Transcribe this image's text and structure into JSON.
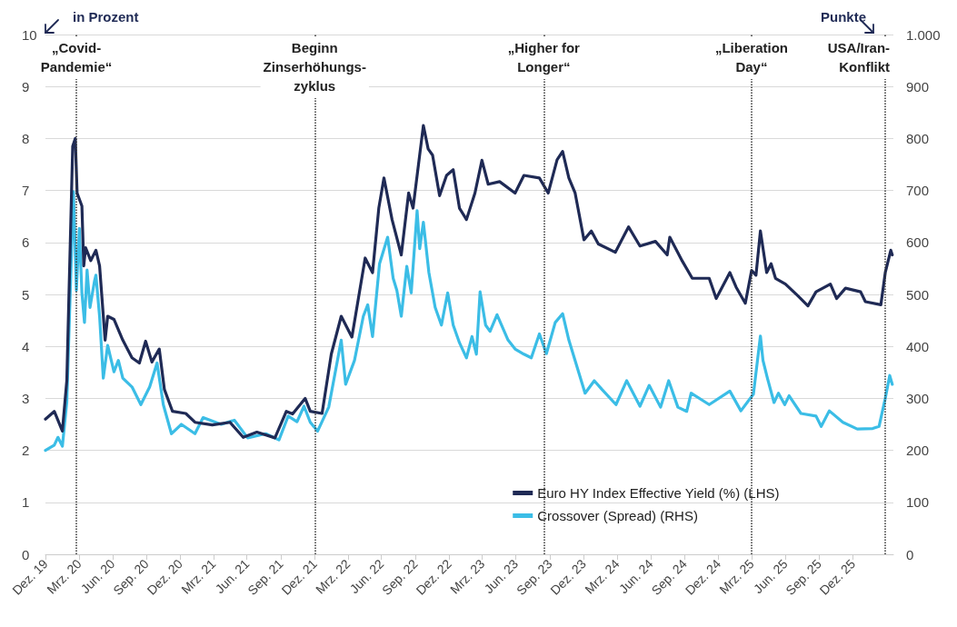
{
  "chart_data": {
    "type": "line",
    "ylabel": "in Prozent",
    "y2label": "Punkte",
    "xlim": [
      "2019-12-31",
      "2026-04-20"
    ],
    "xticks": [
      {
        "value": "2019-12-31",
        "label": "Dez. 19"
      },
      {
        "value": "2020-03-31",
        "label": "Mrz. 20"
      },
      {
        "value": "2020-06-30",
        "label": "Jun. 20"
      },
      {
        "value": "2020-09-30",
        "label": "Sep. 20"
      },
      {
        "value": "2020-12-31",
        "label": "Dez. 20"
      },
      {
        "value": "2021-03-31",
        "label": "Mrz. 21"
      },
      {
        "value": "2021-06-30",
        "label": "Jun. 21"
      },
      {
        "value": "2021-09-30",
        "label": "Sep. 21"
      },
      {
        "value": "2021-12-31",
        "label": "Dez. 21"
      },
      {
        "value": "2022-03-31",
        "label": "Mrz. 22"
      },
      {
        "value": "2022-06-30",
        "label": "Jun. 22"
      },
      {
        "value": "2022-09-30",
        "label": "Sep. 22"
      },
      {
        "value": "2022-12-31",
        "label": "Dez. 22"
      },
      {
        "value": "2023-03-31",
        "label": "Mrz. 23"
      },
      {
        "value": "2023-06-30",
        "label": "Jun. 23"
      },
      {
        "value": "2023-09-30",
        "label": "Sep. 23"
      },
      {
        "value": "2023-12-31",
        "label": "Dez. 23"
      },
      {
        "value": "2024-03-31",
        "label": "Mrz. 24"
      },
      {
        "value": "2024-06-30",
        "label": "Jun. 24"
      },
      {
        "value": "2024-09-30",
        "label": "Sep. 24"
      },
      {
        "value": "2024-12-31",
        "label": "Dez. 24"
      },
      {
        "value": "2025-03-31",
        "label": "Mrz. 25"
      },
      {
        "value": "2025-06-30",
        "label": "Jun. 25"
      },
      {
        "value": "2025-09-30",
        "label": "Sep. 25"
      },
      {
        "value": "2025-12-31",
        "label": "Dez. 25"
      }
    ],
    "ylim": [
      0,
      10
    ],
    "yticks": [
      0,
      1,
      2,
      3,
      4,
      5,
      6,
      7,
      8,
      9,
      10
    ],
    "y2lim": [
      0,
      1000
    ],
    "y2ticks": [
      0,
      100,
      200,
      300,
      400,
      500,
      600,
      700,
      800,
      900,
      {
        "value": 1000,
        "label": "1.000"
      }
    ],
    "grid": "y",
    "legend": "bottom right",
    "marker": "none",
    "line_style": "solid",
    "ref_lines": [
      {
        "axis": "x",
        "value": "2020-03-24",
        "label": "„Covid-\nPandemie“"
      },
      {
        "axis": "x",
        "value": "2021-12-31",
        "label": "Beginn\nZinserhöhungs-\nzyklus"
      },
      {
        "axis": "x",
        "value": "2023-09-14",
        "label": "„Higher for\nLonger“"
      },
      {
        "axis": "x",
        "value": "2025-03-31",
        "label": "„Liberation\nDay“"
      },
      {
        "axis": "x",
        "value": "2026-03-29",
        "label": "USA/Iran-\nKonflikt"
      }
    ],
    "series": [
      {
        "name": "Euro HY Index Effective Yield (%) (LHS)",
        "color": "#1f2a55",
        "x": [
          "2019-12-31",
          "2020-01-24",
          "2020-02-15",
          "2020-02-27",
          "2020-03-14",
          "2020-03-21",
          "2020-03-26",
          "2020-04-08",
          "2020-04-13",
          "2020-04-18",
          "2020-05-02",
          "2020-05-16",
          "2020-05-26",
          "2020-06-10",
          "2020-06-17",
          "2020-07-04",
          "2020-07-28",
          "2020-08-22",
          "2020-09-11",
          "2020-09-28",
          "2020-10-15",
          "2020-11-04",
          "2020-11-18",
          "2020-12-10",
          "2021-01-15",
          "2021-02-09",
          "2021-03-28",
          "2021-05-15",
          "2021-06-20",
          "2021-07-27",
          "2021-09-14",
          "2021-10-15",
          "2021-11-01",
          "2021-12-05",
          "2021-12-19",
          "2022-01-20",
          "2022-02-14",
          "2022-03-13",
          "2022-04-11",
          "2022-05-17",
          "2022-06-06",
          "2022-06-23",
          "2022-07-07",
          "2022-07-29",
          "2022-08-23",
          "2022-09-12",
          "2022-09-24",
          "2022-10-22",
          "2022-11-04",
          "2022-11-16",
          "2022-12-05",
          "2022-12-24",
          "2023-01-11",
          "2023-01-28",
          "2023-02-16",
          "2023-03-11",
          "2023-03-30",
          "2023-04-16",
          "2023-05-17",
          "2023-06-28",
          "2023-07-22",
          "2023-09-02",
          "2023-09-26",
          "2023-10-20",
          "2023-11-04",
          "2023-11-21",
          "2023-12-08",
          "2024-01-01",
          "2024-01-21",
          "2024-02-09",
          "2024-03-26",
          "2024-05-01",
          "2024-06-01",
          "2024-07-13",
          "2024-08-14",
          "2024-08-21",
          "2024-09-24",
          "2024-10-21",
          "2024-12-06",
          "2024-12-25",
          "2025-01-31",
          "2025-02-17",
          "2025-03-14",
          "2025-03-31",
          "2025-04-12",
          "2025-04-24",
          "2025-05-11",
          "2025-05-23",
          "2025-06-04",
          "2025-07-01",
          "2025-08-04",
          "2025-08-31",
          "2025-09-22",
          "2025-10-31",
          "2025-11-17",
          "2025-12-11",
          "2026-01-21",
          "2026-02-03",
          "2026-03-17",
          "2026-03-29",
          "2026-04-13",
          "2026-04-17"
        ],
        "values": [
          2.6,
          2.75,
          2.37,
          3.34,
          7.85,
          8.0,
          6.95,
          6.7,
          5.55,
          5.9,
          5.65,
          5.85,
          5.55,
          4.12,
          4.58,
          4.52,
          4.12,
          3.78,
          3.68,
          4.1,
          3.7,
          3.95,
          3.17,
          2.75,
          2.71,
          2.54,
          2.49,
          2.54,
          2.25,
          2.35,
          2.24,
          2.75,
          2.7,
          3.0,
          2.75,
          2.71,
          3.85,
          4.58,
          4.18,
          5.7,
          5.42,
          6.66,
          7.24,
          6.44,
          5.76,
          6.95,
          6.66,
          8.25,
          7.8,
          7.68,
          6.9,
          7.29,
          7.4,
          6.66,
          6.44,
          6.95,
          7.58,
          7.12,
          7.17,
          6.95,
          7.29,
          7.24,
          6.95,
          7.59,
          7.75,
          7.24,
          6.95,
          6.05,
          6.22,
          5.97,
          5.81,
          6.3,
          5.93,
          6.02,
          5.76,
          6.1,
          5.64,
          5.31,
          5.31,
          4.92,
          5.42,
          5.14,
          4.83,
          5.46,
          5.37,
          6.22,
          5.42,
          5.59,
          5.31,
          5.2,
          4.97,
          4.78,
          5.05,
          5.2,
          4.92,
          5.12,
          5.05,
          4.86,
          4.8,
          5.42,
          5.85,
          5.76
        ]
      },
      {
        "name": "Crossover (Spread) (RHS)",
        "color": "#3bbde6",
        "axis": "y2",
        "x": [
          "2019-12-31",
          "2020-01-24",
          "2020-02-03",
          "2020-02-15",
          "2020-02-27",
          "2020-03-09",
          "2020-03-16",
          "2020-03-24",
          "2020-04-01",
          "2020-04-08",
          "2020-04-15",
          "2020-04-22",
          "2020-04-30",
          "2020-05-12",
          "2020-05-16",
          "2020-05-26",
          "2020-06-05",
          "2020-06-17",
          "2020-07-04",
          "2020-07-16",
          "2020-07-28",
          "2020-08-22",
          "2020-09-15",
          "2020-10-09",
          "2020-10-29",
          "2020-11-15",
          "2020-12-07",
          "2021-01-03",
          "2021-02-09",
          "2021-03-03",
          "2021-04-21",
          "2021-05-27",
          "2021-07-02",
          "2021-08-20",
          "2021-09-25",
          "2021-10-20",
          "2021-11-13",
          "2021-12-02",
          "2021-12-19",
          "2022-01-08",
          "2022-02-07",
          "2022-03-13",
          "2022-03-25",
          "2022-04-18",
          "2022-05-12",
          "2022-05-24",
          "2022-06-06",
          "2022-06-25",
          "2022-07-17",
          "2022-08-01",
          "2022-08-11",
          "2022-08-23",
          "2022-09-07",
          "2022-09-19",
          "2022-10-05",
          "2022-10-12",
          "2022-10-22",
          "2022-11-06",
          "2022-11-23",
          "2022-12-10",
          "2022-12-27",
          "2023-01-11",
          "2023-01-28",
          "2023-02-16",
          "2023-03-03",
          "2023-03-15",
          "2023-03-25",
          "2023-04-09",
          "2023-04-21",
          "2023-05-10",
          "2023-06-09",
          "2023-06-28",
          "2023-07-22",
          "2023-08-11",
          "2023-09-02",
          "2023-09-21",
          "2023-10-15",
          "2023-11-04",
          "2023-11-21",
          "2023-12-10",
          "2024-01-04",
          "2024-01-29",
          "2024-02-19",
          "2024-03-28",
          "2024-04-26",
          "2024-06-01",
          "2024-06-26",
          "2024-07-27",
          "2024-08-18",
          "2024-09-12",
          "2024-10-06",
          "2024-10-18",
          "2024-12-06",
          "2025-01-31",
          "2025-03-02",
          "2025-04-05",
          "2025-04-24",
          "2025-05-01",
          "2025-05-13",
          "2025-05-31",
          "2025-06-12",
          "2025-06-29",
          "2025-07-11",
          "2025-08-12",
          "2025-09-22",
          "2025-10-06",
          "2025-10-28",
          "2025-12-04",
          "2026-01-12",
          "2026-02-23",
          "2026-03-12",
          "2026-03-29",
          "2026-04-10",
          "2026-04-17"
        ],
        "values": [
          200,
          210,
          225,
          208,
          293,
          542,
          698,
          508,
          627,
          503,
          446,
          547,
          475,
          525,
          537,
          458,
          339,
          402,
          351,
          373,
          339,
          322,
          288,
          322,
          368,
          288,
          232,
          250,
          232,
          263,
          250,
          258,
          224,
          232,
          220,
          266,
          255,
          285,
          254,
          237,
          283,
          412,
          327,
          373,
          458,
          480,
          419,
          559,
          610,
          531,
          508,
          458,
          554,
          503,
          661,
          588,
          639,
          542,
          475,
          441,
          503,
          441,
          407,
          378,
          419,
          385,
          505,
          441,
          429,
          461,
          412,
          395,
          385,
          378,
          424,
          386,
          446,
          463,
          412,
          368,
          310,
          334,
          317,
          288,
          334,
          285,
          325,
          283,
          334,
          283,
          275,
          310,
          288,
          314,
          276,
          308,
          420,
          373,
          339,
          292,
          310,
          288,
          305,
          271,
          266,
          246,
          276,
          254,
          241,
          242,
          246,
          300,
          344,
          327
        ]
      }
    ]
  }
}
